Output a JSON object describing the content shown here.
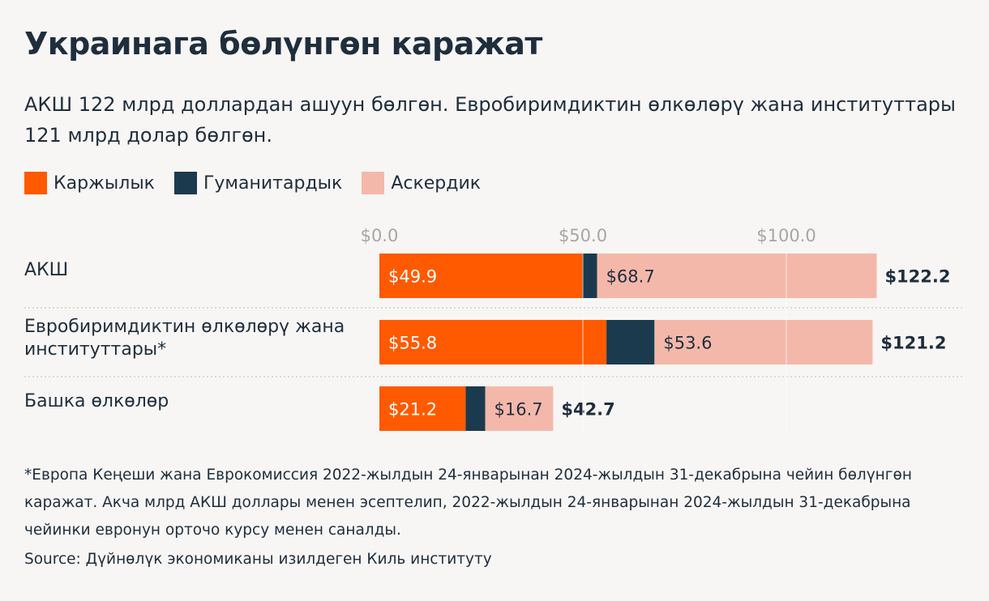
{
  "title": "Украинага бөлүнгөн каражат",
  "subtitle": "АКШ 122 млрд доллардан ашуун бөлгөн. Евробиримдиктин өлкөлөрү жана институттары 121 млрд долар бөлгөн.",
  "colors": {
    "financial": "#ff5a00",
    "humanitarian": "#1b3a4e",
    "military": "#f4b8aa",
    "text": "#1f2e3d",
    "axis_text": "#a6a6a6",
    "background": "#f7f6f4"
  },
  "chart_data": {
    "type": "bar",
    "orientation": "horizontal",
    "stacked": true,
    "categories": [
      [
        "АКШ"
      ],
      [
        "Евробиримдиктин өлкөлөрү жана",
        "институттары*"
      ],
      [
        "Башка өлкөлөр"
      ]
    ],
    "series": [
      {
        "name": "Каржылык",
        "values": [
          49.9,
          55.8,
          21.2
        ],
        "labels": [
          "$49.9",
          "$55.8",
          "$21.2"
        ]
      },
      {
        "name": "Гуманитардык",
        "values": [
          3.6,
          11.8,
          4.8
        ],
        "labels": [
          "",
          "",
          ""
        ]
      },
      {
        "name": "Аскердик",
        "values": [
          68.7,
          53.6,
          16.7
        ],
        "labels": [
          "$68.7",
          "$53.6",
          "$16.7"
        ]
      }
    ],
    "totals": [
      "$122.2",
      "$121.2",
      "$42.7"
    ],
    "xticks": [
      0,
      50,
      100
    ],
    "xtick_labels": [
      "$0.0",
      "$50.0",
      "$100.0"
    ],
    "xlim": [
      0,
      128
    ],
    "tick_position": "top",
    "legend": "top-left",
    "grid": true
  },
  "footnote": "*Европа Кеңеши жана Еврокомиссия 2022-жылдын 24-январынан 2024-жылдын 31-декабрына чейин бөлүнгөн каражат. Акча млрд АКШ доллары менен эсептелип, 2022-жылдын 24-январынан 2024-жылдын 31-декабрына чейинки евронун орточо курсу менен саналды.",
  "source": "Source: Дүйнөлүк экономиканы изилдеген Киль институту"
}
